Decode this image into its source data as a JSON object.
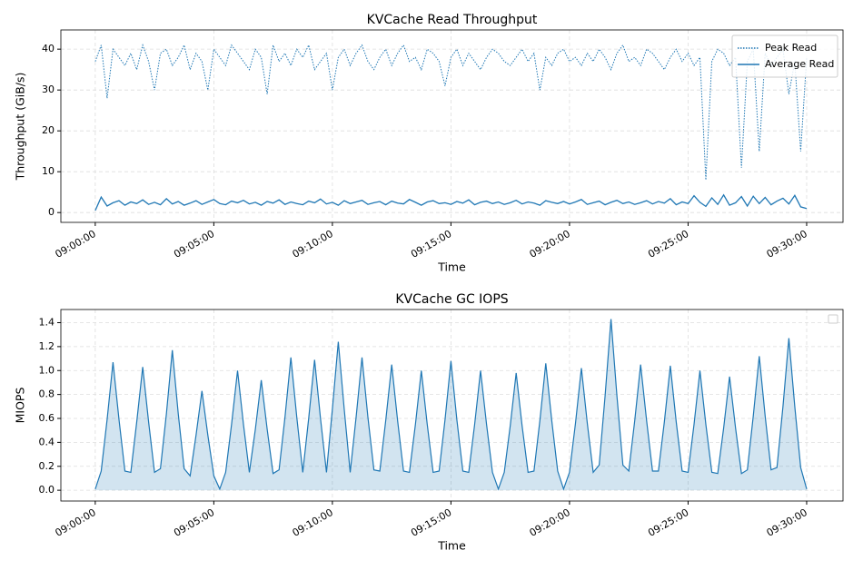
{
  "chart_data": [
    {
      "type": "line",
      "title": "KVCache Read Throughput",
      "xlabel": "Time",
      "ylabel": "Throughput (GiB/s)",
      "x": [
        "09:00:00",
        "09:00:15",
        "09:00:30",
        "09:00:45",
        "09:01:00",
        "09:01:15",
        "09:01:30",
        "09:01:45",
        "09:02:00",
        "09:02:15",
        "09:02:30",
        "09:02:45",
        "09:03:00",
        "09:03:15",
        "09:03:30",
        "09:03:45",
        "09:04:00",
        "09:04:15",
        "09:04:30",
        "09:04:45",
        "09:05:00",
        "09:05:15",
        "09:05:30",
        "09:05:45",
        "09:06:00",
        "09:06:15",
        "09:06:30",
        "09:06:45",
        "09:07:00",
        "09:07:15",
        "09:07:30",
        "09:07:45",
        "09:08:00",
        "09:08:15",
        "09:08:30",
        "09:08:45",
        "09:09:00",
        "09:09:15",
        "09:09:30",
        "09:09:45",
        "09:10:00",
        "09:10:15",
        "09:10:30",
        "09:10:45",
        "09:11:00",
        "09:11:15",
        "09:11:30",
        "09:11:45",
        "09:12:00",
        "09:12:15",
        "09:12:30",
        "09:12:45",
        "09:13:00",
        "09:13:15",
        "09:13:30",
        "09:13:45",
        "09:14:00",
        "09:14:15",
        "09:14:30",
        "09:14:45",
        "09:15:00",
        "09:15:15",
        "09:15:30",
        "09:15:45",
        "09:16:00",
        "09:16:15",
        "09:16:30",
        "09:16:45",
        "09:17:00",
        "09:17:15",
        "09:17:30",
        "09:17:45",
        "09:18:00",
        "09:18:15",
        "09:18:30",
        "09:18:45",
        "09:19:00",
        "09:19:15",
        "09:19:30",
        "09:19:45",
        "09:20:00",
        "09:20:15",
        "09:20:30",
        "09:20:45",
        "09:21:00",
        "09:21:15",
        "09:21:30",
        "09:21:45",
        "09:22:00",
        "09:22:15",
        "09:22:30",
        "09:22:45",
        "09:23:00",
        "09:23:15",
        "09:23:30",
        "09:23:45",
        "09:24:00",
        "09:24:15",
        "09:24:30",
        "09:24:45",
        "09:25:00",
        "09:25:15",
        "09:25:30",
        "09:25:45",
        "09:26:00",
        "09:26:15",
        "09:26:30",
        "09:26:45",
        "09:27:00",
        "09:27:15",
        "09:27:30",
        "09:27:45",
        "09:28:00",
        "09:28:15",
        "09:28:30",
        "09:28:45",
        "09:29:00",
        "09:29:15",
        "09:29:30",
        "09:29:45",
        "09:30:00"
      ],
      "series": [
        {
          "name": "Peak Read",
          "color": "#1f77b4",
          "linestyle": "dotted",
          "values": [
            37,
            41,
            28,
            40,
            38,
            36,
            39,
            35,
            41,
            37,
            30,
            39,
            40,
            36,
            38,
            41,
            35,
            39,
            37,
            30,
            40,
            38,
            36,
            41,
            39,
            37,
            35,
            40,
            38,
            29,
            41,
            37,
            39,
            36,
            40,
            38,
            41,
            35,
            37,
            39,
            30,
            38,
            40,
            36,
            39,
            41,
            37,
            35,
            38,
            40,
            36,
            39,
            41,
            37,
            38,
            35,
            40,
            39,
            37,
            31,
            38,
            40,
            36,
            39,
            37,
            35,
            38,
            40,
            39,
            37,
            36,
            38,
            40,
            37,
            39,
            30,
            38,
            36,
            39,
            40,
            37,
            38,
            36,
            39,
            37,
            40,
            38,
            35,
            39,
            41,
            37,
            38,
            36,
            40,
            39,
            37,
            35,
            38,
            40,
            37,
            39,
            36,
            38,
            8,
            37,
            40,
            39,
            36,
            38,
            11,
            37,
            40,
            15,
            39,
            36,
            38,
            40,
            29,
            37,
            15,
            38
          ]
        },
        {
          "name": "Average Read",
          "color": "#1f77b4",
          "linestyle": "solid",
          "values": [
            0.5,
            3.8,
            1.6,
            2.4,
            2.9,
            1.8,
            2.6,
            2.2,
            3.1,
            2.0,
            2.5,
            1.9,
            3.4,
            2.1,
            2.7,
            1.8,
            2.3,
            2.9,
            2.0,
            2.6,
            3.2,
            2.2,
            1.9,
            2.8,
            2.4,
            3.0,
            2.1,
            2.5,
            1.8,
            2.7,
            2.3,
            3.1,
            2.0,
            2.6,
            2.2,
            1.9,
            2.8,
            2.4,
            3.3,
            2.1,
            2.5,
            1.8,
            2.9,
            2.2,
            2.6,
            3.0,
            2.0,
            2.4,
            2.7,
            1.9,
            2.8,
            2.3,
            2.1,
            3.2,
            2.5,
            1.8,
            2.6,
            2.9,
            2.2,
            2.4,
            2.0,
            2.7,
            2.3,
            3.1,
            1.9,
            2.5,
            2.8,
            2.2,
            2.6,
            2.0,
            2.4,
            3.0,
            2.1,
            2.6,
            2.3,
            1.8,
            2.9,
            2.5,
            2.2,
            2.7,
            2.1,
            2.6,
            3.2,
            2.0,
            2.4,
            2.8,
            1.9,
            2.5,
            3.0,
            2.2,
            2.6,
            2.0,
            2.4,
            2.9,
            2.1,
            2.7,
            2.3,
            3.4,
            1.9,
            2.6,
            2.2,
            4.1,
            2.5,
            1.5,
            3.6,
            2.0,
            4.3,
            1.8,
            2.4,
            3.9,
            1.6,
            4.0,
            2.2,
            3.7,
            1.9,
            2.8,
            3.5,
            2.1,
            4.2,
            1.4,
            1.0
          ]
        }
      ],
      "xlim": [
        "08:58:33",
        "09:31:32"
      ],
      "xticks": [
        "09:00:00",
        "09:05:00",
        "09:10:00",
        "09:15:00",
        "09:20:00",
        "09:25:00",
        "09:30:00"
      ],
      "ylim": [
        -2.4,
        44.7
      ],
      "yticks": [
        0,
        10,
        20,
        30,
        40
      ],
      "grid": true,
      "legend": "upper right"
    },
    {
      "type": "area",
      "title": "KVCache GC IOPS",
      "xlabel": "Time",
      "ylabel": "MIOPS",
      "color": "#1f77b4",
      "x": [
        "09:00:00",
        "09:00:15",
        "09:00:30",
        "09:00:45",
        "09:01:00",
        "09:01:15",
        "09:01:30",
        "09:01:45",
        "09:02:00",
        "09:02:15",
        "09:02:30",
        "09:02:45",
        "09:03:00",
        "09:03:15",
        "09:03:30",
        "09:03:45",
        "09:04:00",
        "09:04:15",
        "09:04:30",
        "09:04:45",
        "09:05:00",
        "09:05:15",
        "09:05:30",
        "09:05:45",
        "09:06:00",
        "09:06:15",
        "09:06:30",
        "09:06:45",
        "09:07:00",
        "09:07:15",
        "09:07:30",
        "09:07:45",
        "09:08:00",
        "09:08:15",
        "09:08:30",
        "09:08:45",
        "09:09:00",
        "09:09:15",
        "09:09:30",
        "09:09:45",
        "09:10:00",
        "09:10:15",
        "09:10:30",
        "09:10:45",
        "09:11:00",
        "09:11:15",
        "09:11:30",
        "09:11:45",
        "09:12:00",
        "09:12:15",
        "09:12:30",
        "09:12:45",
        "09:13:00",
        "09:13:15",
        "09:13:30",
        "09:13:45",
        "09:14:00",
        "09:14:15",
        "09:14:30",
        "09:14:45",
        "09:15:00",
        "09:15:15",
        "09:15:30",
        "09:15:45",
        "09:16:00",
        "09:16:15",
        "09:16:30",
        "09:16:45",
        "09:17:00",
        "09:17:15",
        "09:17:30",
        "09:17:45",
        "09:18:00",
        "09:18:15",
        "09:18:30",
        "09:18:45",
        "09:19:00",
        "09:19:15",
        "09:19:30",
        "09:19:45",
        "09:20:00",
        "09:20:15",
        "09:20:30",
        "09:20:45",
        "09:21:00",
        "09:21:15",
        "09:21:30",
        "09:21:45",
        "09:22:00",
        "09:22:15",
        "09:22:30",
        "09:22:45",
        "09:23:00",
        "09:23:15",
        "09:23:30",
        "09:23:45",
        "09:24:00",
        "09:24:15",
        "09:24:30",
        "09:24:45",
        "09:25:00",
        "09:25:15",
        "09:25:30",
        "09:25:45",
        "09:26:00",
        "09:26:15",
        "09:26:30",
        "09:26:45",
        "09:27:00",
        "09:27:15",
        "09:27:30",
        "09:27:45",
        "09:28:00",
        "09:28:15",
        "09:28:30",
        "09:28:45",
        "09:29:00",
        "09:29:15",
        "09:29:30",
        "09:29:45",
        "09:30:00"
      ],
      "values": [
        0.01,
        0.16,
        0.59,
        1.07,
        0.59,
        0.16,
        0.15,
        0.57,
        1.03,
        0.57,
        0.15,
        0.18,
        0.64,
        1.17,
        0.64,
        0.18,
        0.12,
        0.46,
        0.83,
        0.46,
        0.12,
        0.01,
        0.15,
        0.55,
        1.0,
        0.55,
        0.15,
        0.51,
        0.92,
        0.51,
        0.14,
        0.17,
        0.61,
        1.11,
        0.61,
        0.15,
        0.6,
        1.09,
        0.6,
        0.15,
        0.68,
        1.24,
        0.68,
        0.15,
        0.61,
        1.11,
        0.61,
        0.17,
        0.16,
        0.58,
        1.05,
        0.58,
        0.16,
        0.15,
        0.55,
        1.0,
        0.55,
        0.15,
        0.16,
        0.59,
        1.08,
        0.59,
        0.16,
        0.15,
        0.55,
        1.0,
        0.55,
        0.15,
        0.01,
        0.15,
        0.54,
        0.98,
        0.54,
        0.15,
        0.16,
        0.58,
        1.06,
        0.58,
        0.16,
        0.01,
        0.15,
        0.56,
        1.02,
        0.56,
        0.15,
        0.21,
        0.79,
        1.43,
        0.79,
        0.21,
        0.16,
        0.58,
        1.05,
        0.58,
        0.16,
        0.16,
        0.57,
        1.04,
        0.57,
        0.16,
        0.15,
        0.55,
        1.0,
        0.55,
        0.15,
        0.14,
        0.52,
        0.95,
        0.52,
        0.14,
        0.17,
        0.62,
        1.12,
        0.62,
        0.17,
        0.19,
        0.7,
        1.27,
        0.7,
        0.19,
        0.01
      ],
      "xlim": [
        "08:58:33",
        "09:31:32"
      ],
      "xticks": [
        "09:00:00",
        "09:05:00",
        "09:10:00",
        "09:15:00",
        "09:20:00",
        "09:25:00",
        "09:30:00"
      ],
      "ylim": [
        -0.09,
        1.51
      ],
      "yticks": [
        {
          "value": 0,
          "label": "0.0"
        },
        {
          "value": 0.2,
          "label": "0.2"
        },
        {
          "value": 0.4,
          "label": "0.4"
        },
        {
          "value": 0.6,
          "label": "0.6"
        },
        {
          "value": 0.8,
          "label": "0.8"
        },
        {
          "value": 1.0,
          "label": "1.0"
        },
        {
          "value": 1.2,
          "label": "1.2"
        },
        {
          "value": 1.4,
          "label": "1.4"
        }
      ],
      "grid": true,
      "legend": "upper right"
    }
  ]
}
